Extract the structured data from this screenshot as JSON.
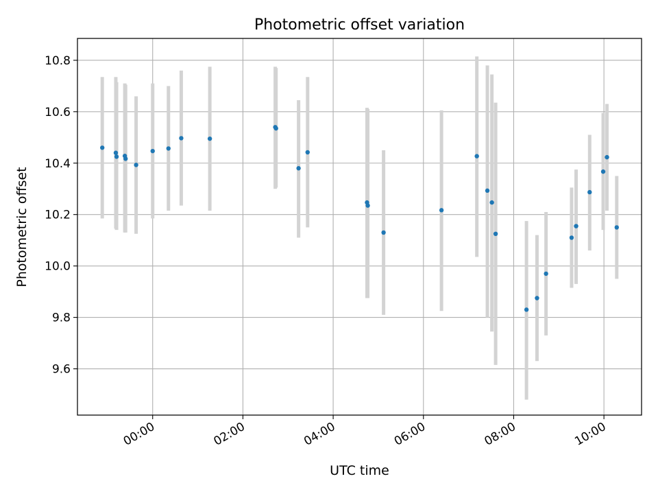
{
  "chart_data": {
    "type": "scatter",
    "title": "Photometric offset variation",
    "xlabel": "UTC time",
    "ylabel": "Photometric offset",
    "x_unit": "UTC time (HH:MM)",
    "xlim": [
      "-01:40",
      "10:50"
    ],
    "ylim": [
      9.42,
      10.885
    ],
    "x_ticks": [
      "00:00",
      "02:00",
      "04:00",
      "06:00",
      "08:00",
      "10:00"
    ],
    "y_ticks": [
      "9.6",
      "9.8",
      "10.0",
      "10.2",
      "10.4",
      "10.6",
      "10.8"
    ],
    "grid": true,
    "marker_color": "#1f77b4",
    "errorbar_color": "#d3d3d3",
    "points": [
      {
        "x": "-01:07",
        "y": 10.46,
        "ylow": 10.185,
        "yhigh": 10.735
      },
      {
        "x": "-00:49",
        "y": 10.44,
        "ylow": 10.145,
        "yhigh": 10.735
      },
      {
        "x": "-00:48",
        "y": 10.425,
        "ylow": 10.14,
        "yhigh": 10.715
      },
      {
        "x": "-00:37",
        "y": 10.428,
        "ylow": 10.13,
        "yhigh": 10.71
      },
      {
        "x": "-00:36",
        "y": 10.417,
        "ylow": 10.13,
        "yhigh": 10.705
      },
      {
        "x": "-00:22",
        "y": 10.393,
        "ylow": 10.125,
        "yhigh": 10.66
      },
      {
        "x": "00:00",
        "y": 10.447,
        "ylow": 10.185,
        "yhigh": 10.71
      },
      {
        "x": "00:21",
        "y": 10.457,
        "ylow": 10.215,
        "yhigh": 10.7
      },
      {
        "x": "00:38",
        "y": 10.497,
        "ylow": 10.235,
        "yhigh": 10.76
      },
      {
        "x": "01:16",
        "y": 10.495,
        "ylow": 10.215,
        "yhigh": 10.775
      },
      {
        "x": "02:43",
        "y": 10.54,
        "ylow": 10.3,
        "yhigh": 10.775
      },
      {
        "x": "02:44",
        "y": 10.535,
        "ylow": 10.305,
        "yhigh": 10.77
      },
      {
        "x": "03:14",
        "y": 10.38,
        "ylow": 10.11,
        "yhigh": 10.645
      },
      {
        "x": "03:26",
        "y": 10.442,
        "ylow": 10.15,
        "yhigh": 10.735
      },
      {
        "x": "04:45",
        "y": 10.247,
        "ylow": 9.875,
        "yhigh": 10.615
      },
      {
        "x": "04:46",
        "y": 10.235,
        "ylow": 9.875,
        "yhigh": 10.61
      },
      {
        "x": "05:07",
        "y": 10.13,
        "ylow": 9.81,
        "yhigh": 10.45
      },
      {
        "x": "06:24",
        "y": 10.217,
        "ylow": 9.825,
        "yhigh": 10.605
      },
      {
        "x": "07:11",
        "y": 10.427,
        "ylow": 10.035,
        "yhigh": 10.815
      },
      {
        "x": "07:25",
        "y": 10.293,
        "ylow": 9.8,
        "yhigh": 10.78
      },
      {
        "x": "07:31",
        "y": 10.247,
        "ylow": 9.745,
        "yhigh": 10.745
      },
      {
        "x": "07:36",
        "y": 10.125,
        "ylow": 9.615,
        "yhigh": 10.635
      },
      {
        "x": "08:17",
        "y": 9.83,
        "ylow": 9.48,
        "yhigh": 10.175
      },
      {
        "x": "08:31",
        "y": 9.875,
        "ylow": 9.63,
        "yhigh": 10.12
      },
      {
        "x": "08:43",
        "y": 9.97,
        "ylow": 9.73,
        "yhigh": 10.21
      },
      {
        "x": "09:17",
        "y": 10.11,
        "ylow": 9.915,
        "yhigh": 10.305
      },
      {
        "x": "09:23",
        "y": 10.155,
        "ylow": 9.93,
        "yhigh": 10.375
      },
      {
        "x": "09:41",
        "y": 10.287,
        "ylow": 10.06,
        "yhigh": 10.51
      },
      {
        "x": "09:59",
        "y": 10.367,
        "ylow": 10.14,
        "yhigh": 10.595
      },
      {
        "x": "10:04",
        "y": 10.423,
        "ylow": 10.215,
        "yhigh": 10.63
      },
      {
        "x": "10:17",
        "y": 10.15,
        "ylow": 9.95,
        "yhigh": 10.35
      }
    ]
  }
}
